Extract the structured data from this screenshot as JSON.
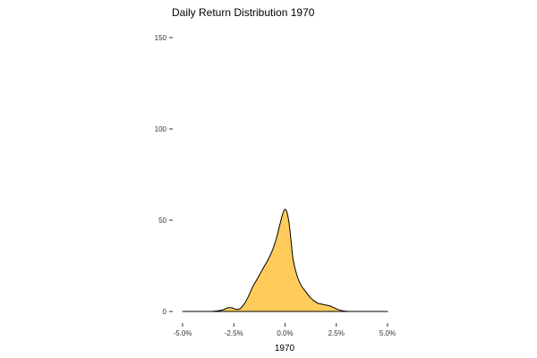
{
  "chart_data": {
    "type": "area",
    "title": "Daily Return Distribution 1970",
    "xlabel": "1970",
    "ylabel": "",
    "xlim": [
      -5.0,
      5.0
    ],
    "ylim": [
      0,
      150
    ],
    "x_ticks": [
      -5.0,
      -2.5,
      0.0,
      2.5,
      5.0
    ],
    "x_tick_labels": [
      "-5.0%",
      "-2.5%",
      "0.0%",
      "2.5%",
      "5.0%"
    ],
    "y_ticks": [
      0,
      50,
      100,
      150
    ],
    "y_tick_labels": [
      "0",
      "50",
      "100",
      "150"
    ],
    "grid": false,
    "legend": "none",
    "fill_color": "#ffcc5c",
    "line_color": "#000000",
    "series": [
      {
        "x": [
          -3.6,
          -3.3,
          -3.0,
          -2.8,
          -2.6,
          -2.4,
          -2.2,
          -2.0,
          -1.8,
          -1.6,
          -1.4,
          -1.2,
          -1.0,
          -0.8,
          -0.6,
          -0.4,
          -0.2,
          -0.1,
          0.0,
          0.1,
          0.2,
          0.3,
          0.4,
          0.6,
          0.8,
          1.0,
          1.2,
          1.4,
          1.6,
          1.8,
          2.0,
          2.2,
          2.4,
          2.6,
          2.8,
          3.0,
          3.2
        ],
        "y": [
          0,
          0.3,
          1,
          2,
          2,
          1.2,
          1.5,
          4,
          8,
          13,
          17,
          21,
          25,
          29,
          34,
          41,
          50,
          54,
          56,
          54,
          48,
          38,
          28,
          19,
          14,
          11,
          8,
          6,
          4.5,
          4,
          3.5,
          3,
          2,
          1,
          0.4,
          0.1,
          0
        ]
      }
    ]
  }
}
